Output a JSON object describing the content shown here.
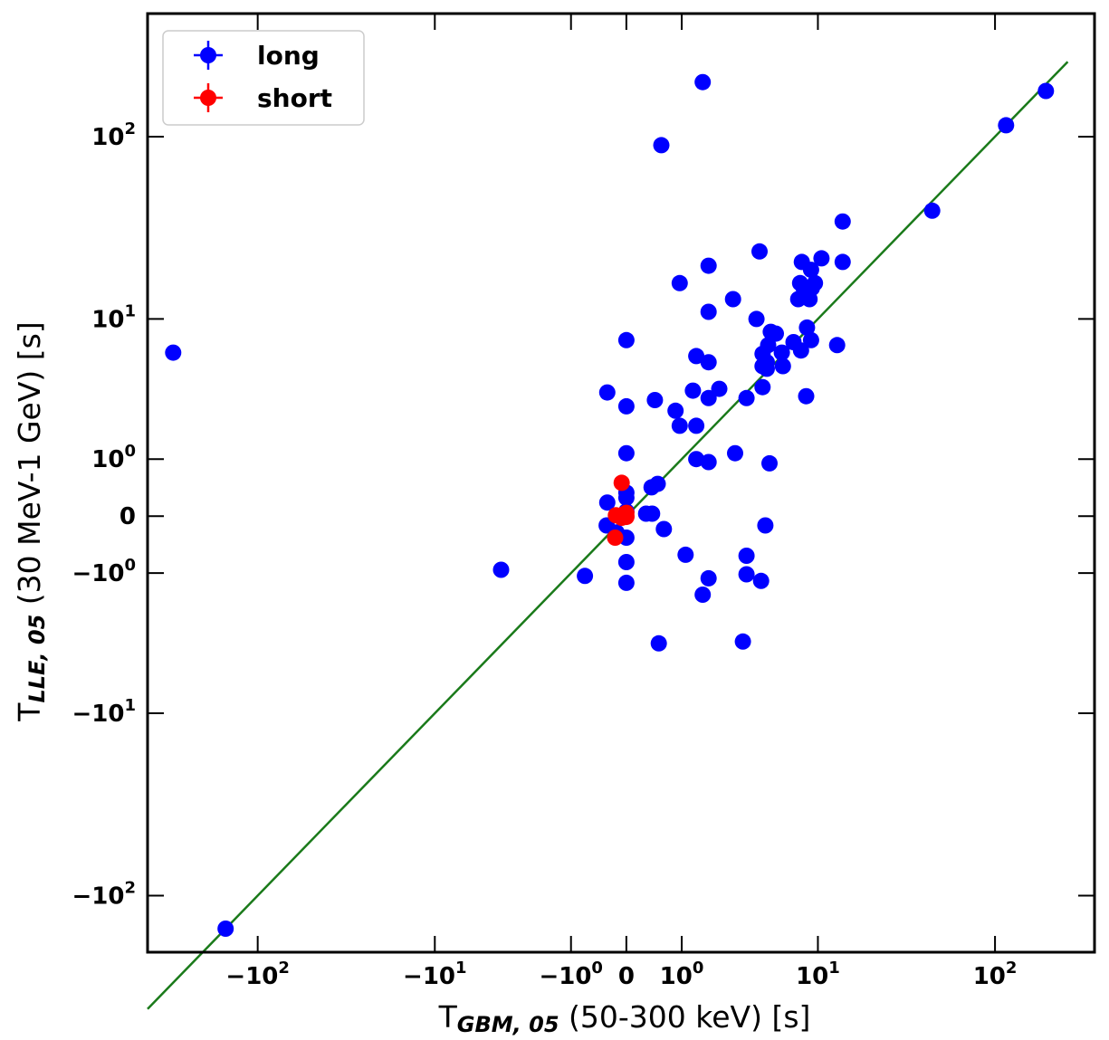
{
  "chart_data": {
    "type": "scatter",
    "scale": "symlog",
    "linthresh": 1,
    "xlim": [
      -400,
      350
    ],
    "ylim": [
      -200,
      450
    ],
    "x_ticks": [
      {
        "value": -100,
        "base": "−10",
        "exp": "2"
      },
      {
        "value": -10,
        "base": "−10",
        "exp": "1"
      },
      {
        "value": -1,
        "base": "−10",
        "exp": "0"
      },
      {
        "value": 0,
        "base": "0",
        "exp": ""
      },
      {
        "value": 1,
        "base": "10",
        "exp": "0"
      },
      {
        "value": 10,
        "base": "10",
        "exp": "1"
      },
      {
        "value": 100,
        "base": "10",
        "exp": "2"
      }
    ],
    "y_ticks": [
      {
        "value": 100,
        "base": "10",
        "exp": "2"
      },
      {
        "value": 10,
        "base": "10",
        "exp": "1"
      },
      {
        "value": 1,
        "base": "10",
        "exp": "0"
      },
      {
        "value": 0,
        "base": "0",
        "exp": ""
      },
      {
        "value": -1,
        "base": "−10",
        "exp": "0"
      },
      {
        "value": -10,
        "base": "−10",
        "exp": "1"
      },
      {
        "value": -100,
        "base": "−10",
        "exp": "2"
      }
    ],
    "xlabel": {
      "prefix": "T",
      "subscript": "GBM, 05",
      "suffix": " (50-300 keV) [s]"
    },
    "ylabel": {
      "prefix": "T",
      "subscript": "LLE, 05",
      "suffix": " (30 MeV-1 GeV) [s]"
    },
    "legend": {
      "position": "top-left",
      "entries": [
        {
          "label": "long",
          "color": "#0000ff"
        },
        {
          "label": "short",
          "color": "#ff0000"
        }
      ]
    },
    "reference_line": {
      "label": "y = x",
      "color": "#1a7a1a",
      "x_range": [
        -400,
        250
      ]
    },
    "series": [
      {
        "name": "long",
        "color": "#0000ff",
        "points": [
          [
            -290,
            6.3
          ],
          [
            -150,
            -150
          ],
          [
            -3.8,
            -0.92
          ],
          [
            -0.68,
            -1.07
          ],
          [
            -0.27,
            3.5
          ],
          [
            -0.27,
            0.18
          ],
          [
            -0.28,
            -0.12
          ],
          [
            -0.13,
            -0.22
          ],
          [
            0,
            7.5
          ],
          [
            0,
            2.8
          ],
          [
            0,
            1.15
          ],
          [
            0,
            0.33
          ],
          [
            0,
            0.25
          ],
          [
            0,
            0.06
          ],
          [
            0,
            -0.3
          ],
          [
            0,
            -0.75
          ],
          [
            0,
            -1.25
          ],
          [
            0.28,
            0.03
          ],
          [
            0.37,
            0.42
          ],
          [
            0.43,
            3.1
          ],
          [
            0.48,
            0.48
          ],
          [
            0.38,
            0.03
          ],
          [
            0.6,
            -0.17
          ],
          [
            0.55,
            90
          ],
          [
            0.5,
            -3.7
          ],
          [
            0.85,
            2.6
          ],
          [
            0.95,
            16
          ],
          [
            0.95,
            2.0
          ],
          [
            1.1,
            -0.6
          ],
          [
            1.3,
            3.6
          ],
          [
            1.4,
            6.0
          ],
          [
            1.4,
            2.0
          ],
          [
            1.4,
            1.0
          ],
          [
            1.6,
            195
          ],
          [
            1.6,
            -1.6
          ],
          [
            1.8,
            20
          ],
          [
            1.8,
            11
          ],
          [
            1.8,
            5.5
          ],
          [
            1.8,
            3.2
          ],
          [
            1.8,
            0.93
          ],
          [
            1.8,
            -1.13
          ],
          [
            2.2,
            3.7
          ],
          [
            2.8,
            13
          ],
          [
            2.9,
            1.15
          ],
          [
            3.3,
            -3.6
          ],
          [
            3.5,
            3.2
          ],
          [
            3.5,
            -0.62
          ],
          [
            3.5,
            -1.03
          ],
          [
            4.1,
            10
          ],
          [
            4.3,
            24
          ],
          [
            4.4,
            -1.2
          ],
          [
            4.5,
            3.8
          ],
          [
            4.5,
            5.2
          ],
          [
            4.5,
            6.2
          ],
          [
            4.7,
            -0.12
          ],
          [
            4.8,
            5.0
          ],
          [
            4.8,
            5.5
          ],
          [
            4.9,
            7.0
          ],
          [
            5.0,
            0.9
          ],
          [
            5.1,
            8.4
          ],
          [
            5.5,
            8.2
          ],
          [
            6.0,
            6.3
          ],
          [
            6.1,
            5.2
          ],
          [
            7.1,
            7.3
          ],
          [
            7.6,
            13
          ],
          [
            7.8,
            16
          ],
          [
            7.9,
            6.5
          ],
          [
            8.0,
            21
          ],
          [
            8.2,
            15
          ],
          [
            8.5,
            3.3
          ],
          [
            8.6,
            8.9
          ],
          [
            8.9,
            13
          ],
          [
            9.1,
            7.5
          ],
          [
            9.1,
            19
          ],
          [
            9.2,
            15
          ],
          [
            9.6,
            16
          ],
          [
            10.5,
            22
          ],
          [
            13,
            7
          ],
          [
            14,
            21
          ],
          [
            14,
            35
          ],
          [
            45,
            40
          ],
          [
            115,
            115
          ],
          [
            190,
            175
          ]
        ]
      },
      {
        "name": "short",
        "color": "#ff0000",
        "points": [
          [
            -0.06,
            0.5
          ],
          [
            -0.14,
            0.01
          ],
          [
            -0.04,
            0.02
          ],
          [
            0,
            0.04
          ],
          [
            0,
            -0.01
          ],
          [
            0,
            0
          ],
          [
            -0.06,
            -0.02
          ],
          [
            -0.15,
            -0.3
          ]
        ]
      }
    ]
  }
}
